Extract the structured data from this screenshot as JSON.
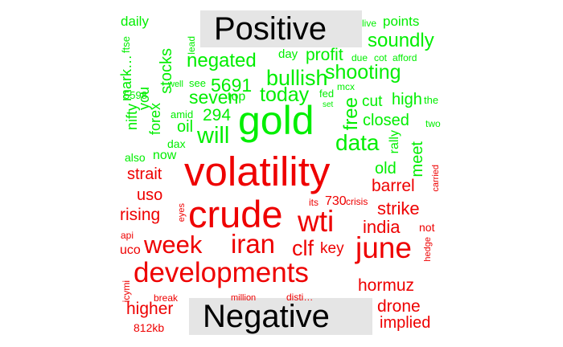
{
  "header_positive": "Positive",
  "header_negative": "Negative",
  "colors": {
    "positive": "#00ee00",
    "negative": "#ee0000",
    "header_bg": "#e5e5e5",
    "header_text": "#000000"
  },
  "positive_words": [
    "daily",
    "mark…",
    "ftse",
    "you",
    "stocks",
    "lead",
    "day",
    "profit",
    "due",
    "cot",
    "afford",
    "live",
    "points",
    "soundly",
    "shooting",
    "bullish",
    "negated",
    "5691",
    "5598",
    "nifty",
    "forex",
    "well",
    "see",
    "amid",
    "oil",
    "294",
    "dax",
    "will",
    "top",
    "seven",
    "today",
    "gold",
    "free",
    "data",
    "fed",
    "set",
    "cut",
    "high",
    "mcx",
    "the",
    "closed",
    "two",
    "rally",
    "meet",
    "also",
    "now",
    "old"
  ],
  "negative_words": [
    "volatility",
    "crude",
    "wti",
    "june",
    "week",
    "iran",
    "clf",
    "developments",
    "strait",
    "uso",
    "barrel",
    "rising",
    "eyes",
    "its",
    "730",
    "crisis",
    "carried",
    "strike",
    "india",
    "key",
    "not",
    "api",
    "uco",
    "hedge",
    "hormuz",
    "icymi",
    "break",
    "million",
    "disti…",
    "higher",
    "drone",
    "812kb",
    "implied"
  ]
}
